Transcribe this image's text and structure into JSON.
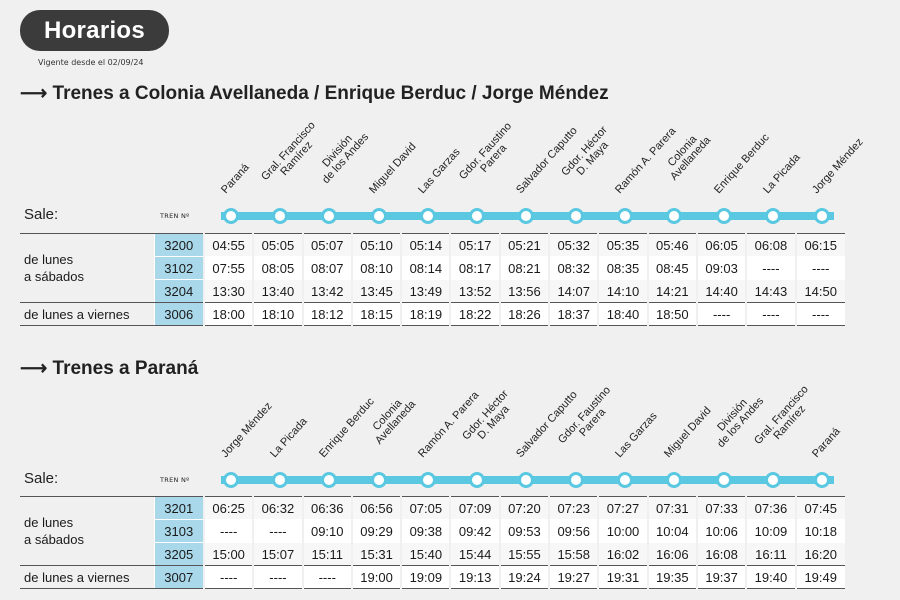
{
  "header": {
    "badge": "Horarios",
    "vigente": "Vigente desde el 02/09/24"
  },
  "sections": [
    {
      "title": "⟶ Trenes a Colonia Avellaneda / Enrique Berduc / Jorge Méndez",
      "sale_label": "Sale:",
      "tren_label": "TREN Nº",
      "stations": [
        [
          "Paraná"
        ],
        [
          "Gral. Francisco",
          "Ramírez"
        ],
        [
          "División",
          "de los Andes"
        ],
        [
          "Miguel David"
        ],
        [
          "Las Garzas"
        ],
        [
          "Gdor. Faustino",
          "Parera"
        ],
        [
          "Salvador Caputto"
        ],
        [
          "Gdor. Héctor",
          "D. Maya"
        ],
        [
          "Ramón A. Parera"
        ],
        [
          "Colonia",
          "Avellaneda"
        ],
        [
          "Enrique Berduc"
        ],
        [
          "La Picada"
        ],
        [
          "Jorge Méndez"
        ]
      ],
      "groups": [
        {
          "label": [
            "de lunes",
            "a sábados"
          ],
          "rows": [
            {
              "train": "3200",
              "times": [
                "04:55",
                "05:05",
                "05:07",
                "05:10",
                "05:14",
                "05:17",
                "05:21",
                "05:32",
                "05:35",
                "05:46",
                "06:05",
                "06:08",
                "06:15"
              ]
            },
            {
              "train": "3102",
              "times": [
                "07:55",
                "08:05",
                "08:07",
                "08:10",
                "08:14",
                "08:17",
                "08:21",
                "08:32",
                "08:35",
                "08:45",
                "09:03",
                "----",
                "----"
              ]
            },
            {
              "train": "3204",
              "times": [
                "13:30",
                "13:40",
                "13:42",
                "13:45",
                "13:49",
                "13:52",
                "13:56",
                "14:07",
                "14:10",
                "14:21",
                "14:40",
                "14:43",
                "14:50"
              ]
            }
          ]
        },
        {
          "label": [
            "de lunes a viernes"
          ],
          "rows": [
            {
              "train": "3006",
              "times": [
                "18:00",
                "18:10",
                "18:12",
                "18:15",
                "18:19",
                "18:22",
                "18:26",
                "18:37",
                "18:40",
                "18:50",
                "----",
                "----",
                "----"
              ]
            }
          ]
        }
      ]
    },
    {
      "title": "⟶ Trenes a Paraná",
      "sale_label": "Sale:",
      "tren_label": "TREN Nº",
      "stations": [
        [
          "Jorge Méndez"
        ],
        [
          "La Picada"
        ],
        [
          "Enrique Berduc"
        ],
        [
          "Colonia",
          "Avellaneda"
        ],
        [
          "Ramón A. Parera"
        ],
        [
          "Gdor. Héctor",
          "D. Maya"
        ],
        [
          "Salvador Caputto"
        ],
        [
          "Gdor. Faustino",
          "Parera"
        ],
        [
          "Las Garzas"
        ],
        [
          "Miguel David"
        ],
        [
          "División",
          "de los Andes"
        ],
        [
          "Gral. Francisco",
          "Ramírez"
        ],
        [
          "Paraná"
        ]
      ],
      "groups": [
        {
          "label": [
            "de lunes",
            "a sábados"
          ],
          "rows": [
            {
              "train": "3201",
              "times": [
                "06:25",
                "06:32",
                "06:36",
                "06:56",
                "07:05",
                "07:09",
                "07:20",
                "07:23",
                "07:27",
                "07:31",
                "07:33",
                "07:36",
                "07:45"
              ]
            },
            {
              "train": "3103",
              "times": [
                "----",
                "----",
                "09:10",
                "09:29",
                "09:38",
                "09:42",
                "09:53",
                "09:56",
                "10:00",
                "10:04",
                "10:06",
                "10:09",
                "10:18"
              ]
            },
            {
              "train": "3205",
              "times": [
                "15:00",
                "15:07",
                "15:11",
                "15:31",
                "15:40",
                "15:44",
                "15:55",
                "15:58",
                "16:02",
                "16:06",
                "16:08",
                "16:11",
                "16:20"
              ]
            }
          ]
        },
        {
          "label": [
            "de lunes a viernes"
          ],
          "rows": [
            {
              "train": "3007",
              "times": [
                "----",
                "----",
                "----",
                "19:00",
                "19:09",
                "19:13",
                "19:24",
                "19:27",
                "19:31",
                "19:35",
                "19:37",
                "19:40",
                "19:49"
              ]
            }
          ]
        }
      ]
    }
  ],
  "colors": {
    "accent": "#5bc8e2",
    "train_cell": "#a9d8ea",
    "badge": "#3b3b3b"
  }
}
